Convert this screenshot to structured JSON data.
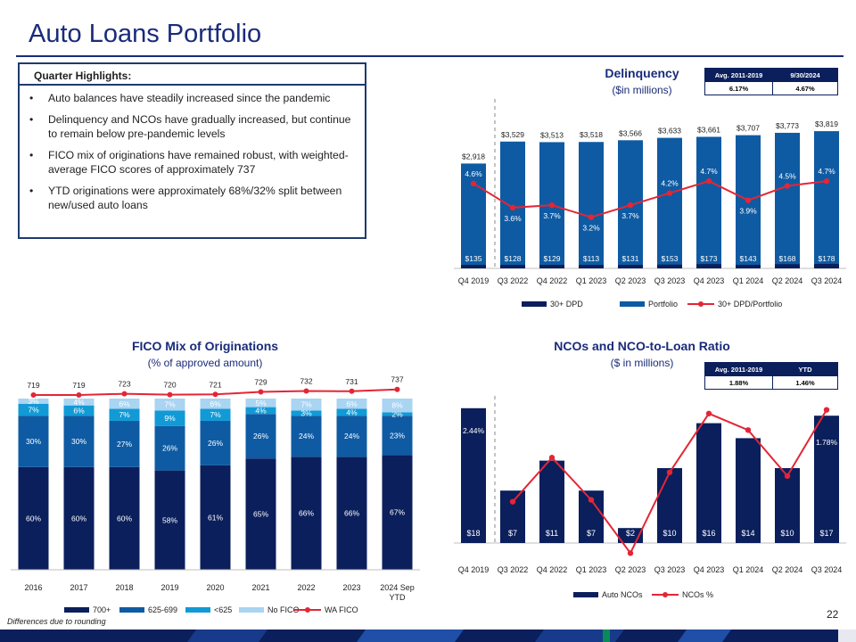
{
  "page": {
    "title": "Auto Loans Portfolio",
    "page_number": "22",
    "footnote": "Differences due to rounding"
  },
  "highlights": {
    "heading": "Quarter Highlights:",
    "bullets": [
      "Auto balances have steadily increased since the pandemic",
      "Delinquency and NCOs have gradually increased, but continue to remain below pre-pandemic levels",
      "FICO mix of originations have remained robust, with weighted-average FICO scores of approximately 737",
      "YTD originations were approximately 68%/32% split between new/used auto loans"
    ]
  },
  "delinquency_table": {
    "col1": "Avg. 2011-2019",
    "col2": "9/30/2024",
    "val1": "6.17%",
    "val2": "4.67%"
  },
  "nco_table": {
    "col1": "Avg. 2011-2019",
    "col2": "YTD",
    "val1": "1.88%",
    "val2": "1.46%"
  },
  "colors": {
    "navy": "#0b1f5c",
    "blue": "#0e5ba3",
    "cyan": "#119ad6",
    "light": "#a9d4f2",
    "red": "#e32636",
    "title": "#1a2b7a"
  },
  "chart_data": [
    {
      "type": "bar",
      "title": "Delinquency",
      "subtitle": "($in millions)",
      "categories": [
        "Q4 2019",
        "Q3 2022",
        "Q4 2022",
        "Q1 2023",
        "Q2 2023",
        "Q3 2023",
        "Q4 2023",
        "Q1 2024",
        "Q2 2024",
        "Q3 2024"
      ],
      "series": [
        {
          "name": "30+ DPD",
          "values": [
            135,
            128,
            129,
            113,
            131,
            153,
            173,
            143,
            168,
            178
          ],
          "labels": [
            "$135",
            "$128",
            "$129",
            "$113",
            "$131",
            "$153",
            "$173",
            "$143",
            "$168",
            "$178"
          ]
        },
        {
          "name": "Portfolio",
          "values": [
            2918,
            3529,
            3513,
            3518,
            3566,
            3633,
            3661,
            3707,
            3773,
            3819
          ],
          "labels": [
            "$2,918",
            "$3,529",
            "$3,513",
            "$3,518",
            "$3,566",
            "$3,633",
            "$3,661",
            "$3,707",
            "$3,773",
            "$3,819"
          ]
        },
        {
          "name": "30+ DPD/Portfolio",
          "type": "line",
          "values": [
            4.6,
            3.6,
            3.7,
            3.2,
            3.7,
            4.2,
            4.7,
            3.9,
            4.5,
            4.7
          ],
          "labels": [
            "4.6%",
            "3.6%",
            "3.7%",
            "3.2%",
            "3.7%",
            "4.2%",
            "4.7%",
            "3.9%",
            "4.5%",
            "4.7%"
          ]
        }
      ],
      "legend": [
        "30+ DPD",
        "Portfolio",
        "30+ DPD/Portfolio"
      ]
    },
    {
      "type": "bar",
      "title": "FICO Mix of Originations",
      "subtitle": "(% of approved amount)",
      "categories": [
        "2016",
        "2017",
        "2018",
        "2019",
        "2020",
        "2021",
        "2022",
        "2023",
        "2024 Sep YTD"
      ],
      "series": [
        {
          "name": "700+",
          "values": [
            60,
            60,
            60,
            58,
            61,
            65,
            66,
            66,
            67
          ]
        },
        {
          "name": "625-699",
          "values": [
            30,
            30,
            27,
            26,
            26,
            26,
            24,
            24,
            23
          ]
        },
        {
          "name": "<625",
          "values": [
            7,
            6,
            7,
            9,
            7,
            4,
            3,
            4,
            2
          ]
        },
        {
          "name": "No FICO",
          "values": [
            3,
            4,
            6,
            7,
            6,
            5,
            7,
            6,
            8
          ]
        },
        {
          "name": "WA FICO",
          "type": "line",
          "values": [
            719,
            719,
            723,
            720,
            721,
            729,
            732,
            731,
            737
          ]
        }
      ],
      "legend": [
        "700+",
        "625-699",
        "<625",
        "No FICO",
        "WA FICO"
      ]
    },
    {
      "type": "bar",
      "title": "NCOs and NCO-to-Loan Ratio",
      "subtitle": "($ in millions)",
      "categories": [
        "Q4 2019",
        "Q3 2022",
        "Q4 2022",
        "Q1 2023",
        "Q2 2023",
        "Q3 2023",
        "Q4 2023",
        "Q1 2024",
        "Q2 2024",
        "Q3 2024"
      ],
      "series": [
        {
          "name": "Auto NCOs",
          "values": [
            18,
            7,
            11,
            7,
            2,
            10,
            16,
            14,
            10,
            17
          ],
          "labels": [
            "$18",
            "$7",
            "$11",
            "$7",
            "$2",
            "$10",
            "$16",
            "$14",
            "$10",
            "$17"
          ]
        },
        {
          "name": "NCOs %",
          "type": "line",
          "values": [
            2.44,
            0.78,
            1.26,
            0.8,
            0.22,
            1.1,
            1.74,
            1.56,
            1.06,
            1.78
          ],
          "labels": [
            "2.44%",
            "",
            "",
            "",
            "",
            "",
            "",
            "",
            "",
            "1.78%"
          ]
        }
      ],
      "legend": [
        "Auto NCOs",
        "NCOs %"
      ]
    }
  ]
}
